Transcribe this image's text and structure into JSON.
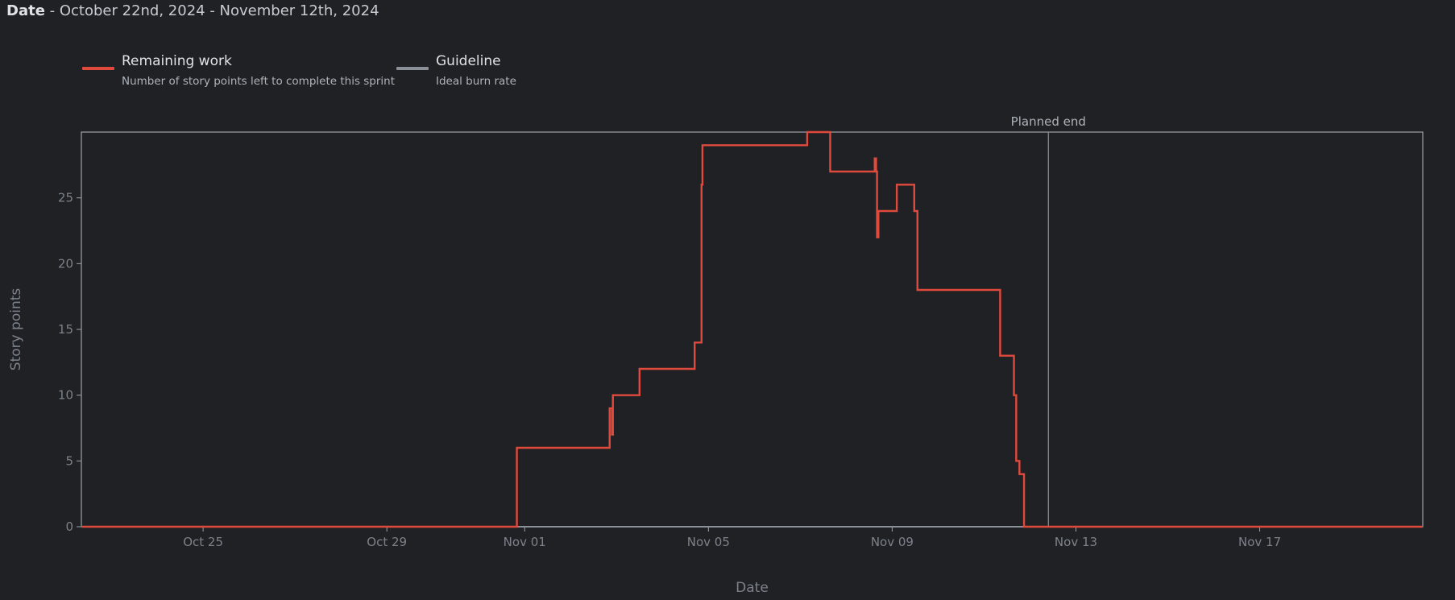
{
  "header": {
    "label": "Date",
    "separator": " - ",
    "range": "October 22nd, 2024 - November 12th, 2024"
  },
  "legend": [
    {
      "title": "Remaining work",
      "description": "Number of story points left to complete this sprint",
      "color": "#e04a3d"
    },
    {
      "title": "Guideline",
      "description": "Ideal burn rate",
      "color": "#8b9098"
    }
  ],
  "chart_data": {
    "type": "line",
    "title": "",
    "xlabel": "Date",
    "ylabel": "Story points",
    "xlim": [
      -2.65,
      26.55
    ],
    "ylim": [
      0,
      30
    ],
    "x_ticks": [
      {
        "x": 0,
        "label": "Oct 25"
      },
      {
        "x": 4,
        "label": "Oct 29"
      },
      {
        "x": 7,
        "label": "Nov 01"
      },
      {
        "x": 11,
        "label": "Nov 05"
      },
      {
        "x": 15,
        "label": "Nov 09"
      },
      {
        "x": 19,
        "label": "Nov 13"
      },
      {
        "x": 23,
        "label": "Nov 17"
      }
    ],
    "y_ticks": [
      0,
      5,
      10,
      15,
      20,
      25
    ],
    "annotations": [
      {
        "x": 18.4,
        "label": "Planned end"
      }
    ],
    "colors": {
      "background": "#1f2125",
      "frame": "#9ea3aa",
      "remaining": "#e04a3d",
      "guideline": "#8b9098",
      "planned_end": "#8b9098"
    },
    "series": [
      {
        "name": "Remaining work",
        "step": true,
        "points": [
          [
            -2.65,
            0
          ],
          [
            6.83,
            0
          ],
          [
            6.83,
            6
          ],
          [
            8.85,
            6
          ],
          [
            8.85,
            9
          ],
          [
            8.9,
            9
          ],
          [
            8.9,
            7
          ],
          [
            8.92,
            7
          ],
          [
            8.92,
            10
          ],
          [
            9.5,
            10
          ],
          [
            9.5,
            12
          ],
          [
            10.7,
            12
          ],
          [
            10.7,
            14
          ],
          [
            10.85,
            14
          ],
          [
            10.85,
            26
          ],
          [
            10.87,
            26
          ],
          [
            10.87,
            29
          ],
          [
            13.15,
            29
          ],
          [
            13.15,
            30
          ],
          [
            13.65,
            30
          ],
          [
            13.65,
            27
          ],
          [
            14.62,
            27
          ],
          [
            14.62,
            28
          ],
          [
            14.65,
            28
          ],
          [
            14.65,
            27
          ],
          [
            14.67,
            27
          ],
          [
            14.67,
            22
          ],
          [
            14.7,
            22
          ],
          [
            14.7,
            24
          ],
          [
            15.1,
            24
          ],
          [
            15.1,
            26
          ],
          [
            15.48,
            26
          ],
          [
            15.48,
            24
          ],
          [
            15.55,
            24
          ],
          [
            15.55,
            18
          ],
          [
            17.35,
            18
          ],
          [
            17.35,
            13
          ],
          [
            17.65,
            13
          ],
          [
            17.65,
            10
          ],
          [
            17.7,
            10
          ],
          [
            17.7,
            5
          ],
          [
            17.77,
            5
          ],
          [
            17.77,
            4
          ],
          [
            17.87,
            4
          ],
          [
            17.87,
            0
          ],
          [
            26.55,
            0
          ]
        ]
      },
      {
        "name": "Guideline",
        "points": [
          [
            -2.65,
            0
          ],
          [
            26.55,
            0
          ]
        ]
      }
    ]
  }
}
